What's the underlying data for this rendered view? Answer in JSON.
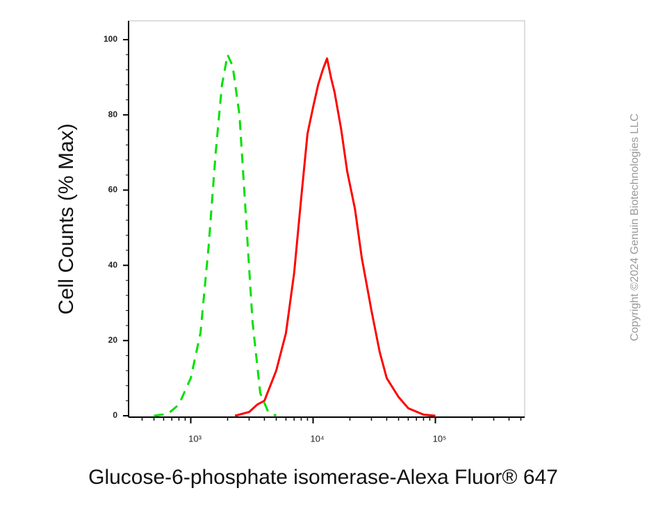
{
  "chart_data": {
    "type": "line",
    "x_label": "Glucose-6-phosphate isomerase-Alexa Fluor® 647",
    "y_label": "Cell Counts (% Max)",
    "watermark": "Copyright ©2024 Genuin Biotechnologies LLC",
    "x_scale": "log",
    "xlim": [
      310,
      537000
    ],
    "ylim": [
      0,
      105
    ],
    "xticks": [
      {
        "value": 1000,
        "label": "10³"
      },
      {
        "value": 10000,
        "label": "10⁴"
      },
      {
        "value": 100000,
        "label": "10⁵"
      }
    ],
    "yticks": [
      0,
      20,
      40,
      60,
      80,
      100
    ],
    "series": [
      {
        "color": "#00e000",
        "line_style": "dashed",
        "x": [
          500,
          650,
          800,
          1000,
          1200,
          1400,
          1600,
          1800,
          2000,
          2200,
          2500,
          2800,
          3200,
          3700,
          4300,
          5000
        ],
        "values": [
          0,
          0.5,
          3,
          10,
          22,
          45,
          70,
          88,
          96,
          93,
          80,
          55,
          25,
          6,
          1,
          0
        ]
      },
      {
        "color": "#ff0000",
        "line_style": "solid",
        "x": [
          2300,
          3000,
          3500,
          4000,
          5000,
          6000,
          7000,
          8000,
          9000,
          10000,
          11000,
          12000,
          13000,
          14000,
          15000,
          17000,
          19000,
          22000,
          25000,
          30000,
          35000,
          40000,
          50000,
          60000,
          80000,
          100000
        ],
        "values": [
          0,
          1,
          3,
          4,
          12,
          22,
          38,
          58,
          75,
          82,
          88,
          92,
          95,
          90,
          86,
          76,
          65,
          55,
          42,
          28,
          17,
          10,
          5,
          2,
          0.3,
          0
        ]
      }
    ]
  }
}
